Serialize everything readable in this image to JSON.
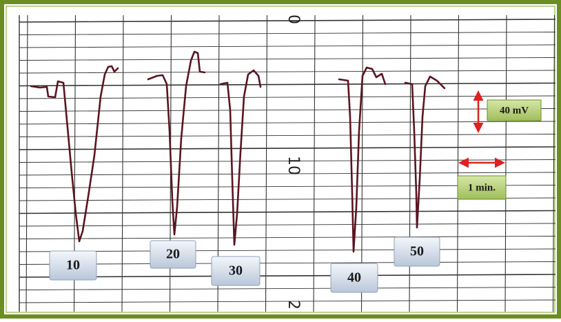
{
  "scale": {
    "voltage": "40 mV",
    "time": "1 min."
  },
  "traces": [
    {
      "label": "10"
    },
    {
      "label": "20"
    },
    {
      "label": "30"
    },
    {
      "label": "40"
    },
    {
      "label": "50"
    }
  ],
  "paper_marks": [
    "0",
    "10",
    "2"
  ]
}
